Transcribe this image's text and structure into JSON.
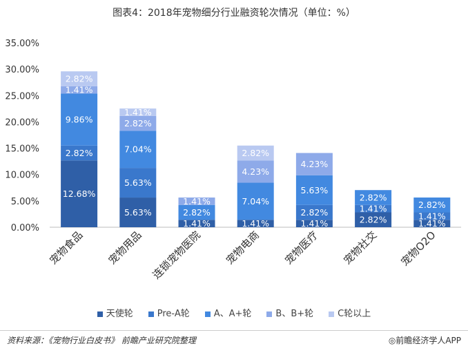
{
  "chart_data": {
    "type": "bar",
    "stacked": true,
    "title": "图表4：2018年宠物细分行业融资轮次情况（单位：%）",
    "categories": [
      "宠物食品",
      "宠物用品",
      "连锁宠物医院",
      "宠物电商",
      "宠物医疗",
      "宠物社交",
      "宠物O2O"
    ],
    "series": [
      {
        "name": "天使轮",
        "color": "#2f5fa7",
        "values": [
          12.68,
          5.63,
          1.41,
          1.41,
          1.41,
          2.82,
          1.41
        ]
      },
      {
        "name": "Pre-A轮",
        "color": "#3a78cc",
        "values": [
          2.82,
          5.63,
          0,
          0,
          2.82,
          1.41,
          1.41
        ]
      },
      {
        "name": "A、A+轮",
        "color": "#4289e0",
        "values": [
          9.86,
          7.04,
          2.82,
          7.04,
          5.63,
          2.82,
          2.82
        ]
      },
      {
        "name": "B、B+轮",
        "color": "#8eaae9",
        "values": [
          1.41,
          2.82,
          1.41,
          4.23,
          4.23,
          0,
          0
        ]
      },
      {
        "name": "C轮以上",
        "color": "#b9c9f1",
        "values": [
          2.82,
          1.41,
          0,
          2.82,
          0,
          0,
          0
        ]
      }
    ],
    "yticks": [
      "0.00%",
      "5.00%",
      "10.00%",
      "15.00%",
      "20.00%",
      "25.00%",
      "30.00%",
      "35.00%"
    ],
    "ylim": [
      0,
      35
    ],
    "grid": false,
    "legend": "bottom"
  },
  "footer": {
    "source": "资料来源：《宠物行业白皮书》 前瞻产业研究院整理",
    "brand": "◎前瞻经济学人APP"
  }
}
